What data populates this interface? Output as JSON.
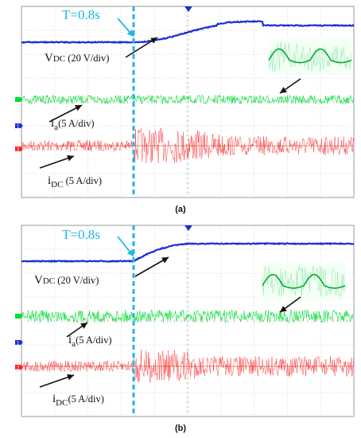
{
  "panels": [
    {
      "caption": "(a)",
      "time_marker": "T=0.8s",
      "labels": {
        "vdc_main": "V",
        "vdc_sub": "DC",
        "vdc_scale": " (20 V/div)",
        "ia_main": "i",
        "ia_sub": "a",
        "ia_scale": "(5 A/div)",
        "idc_main": "i",
        "idc_sub": "DC",
        "idc_scale": " (5 A/div)"
      },
      "channel_markers": [
        "1",
        "2"
      ],
      "inset": true,
      "vdc_trace": {
        "transition": "smooth-overshoot"
      },
      "idc_trace": {
        "transition": "gradual"
      }
    },
    {
      "caption": "(b)",
      "time_marker": "T=0.8s",
      "labels": {
        "vdc_main": "V",
        "vdc_sub": "DC",
        "vdc_scale": " (20 V/div)",
        "ia_main": "i",
        "ia_sub": "a",
        "ia_scale": "(5 A/div)",
        "idc_main": "i",
        "idc_sub": "DC",
        "idc_scale": "(5 A/div)"
      },
      "channel_markers": [
        "1",
        "2"
      ],
      "inset": true,
      "vdc_trace": {
        "transition": "fast-flat"
      },
      "idc_trace": {
        "transition": "abrupt"
      }
    }
  ],
  "chart_data": [
    {
      "type": "line",
      "title": "",
      "annotation": "T=0.8s",
      "series": [
        {
          "name": "VDC (20 V/div)",
          "color": "#1a2fd6"
        },
        {
          "name": "ia (5 A/div)",
          "color": "#00dd33"
        },
        {
          "name": "iDC (5 A/div)",
          "color": "#ff2020"
        }
      ],
      "grid": true
    },
    {
      "type": "line",
      "title": "",
      "annotation": "T=0.8s",
      "series": [
        {
          "name": "VDC (20 V/div)",
          "color": "#1a2fd6"
        },
        {
          "name": "ia (5 A/div)",
          "color": "#00dd33"
        },
        {
          "name": "iDC (5 A/div)",
          "color": "#ff2020"
        }
      ],
      "grid": true
    }
  ],
  "colors": {
    "vdc": "#1a2fd6",
    "ia": "#00dd33",
    "idc": "#ff2020",
    "marker": "#1fb8e6",
    "grid": "#c8c8c8",
    "channel1": "#1a2fd6",
    "channel2": "#ff2020"
  }
}
